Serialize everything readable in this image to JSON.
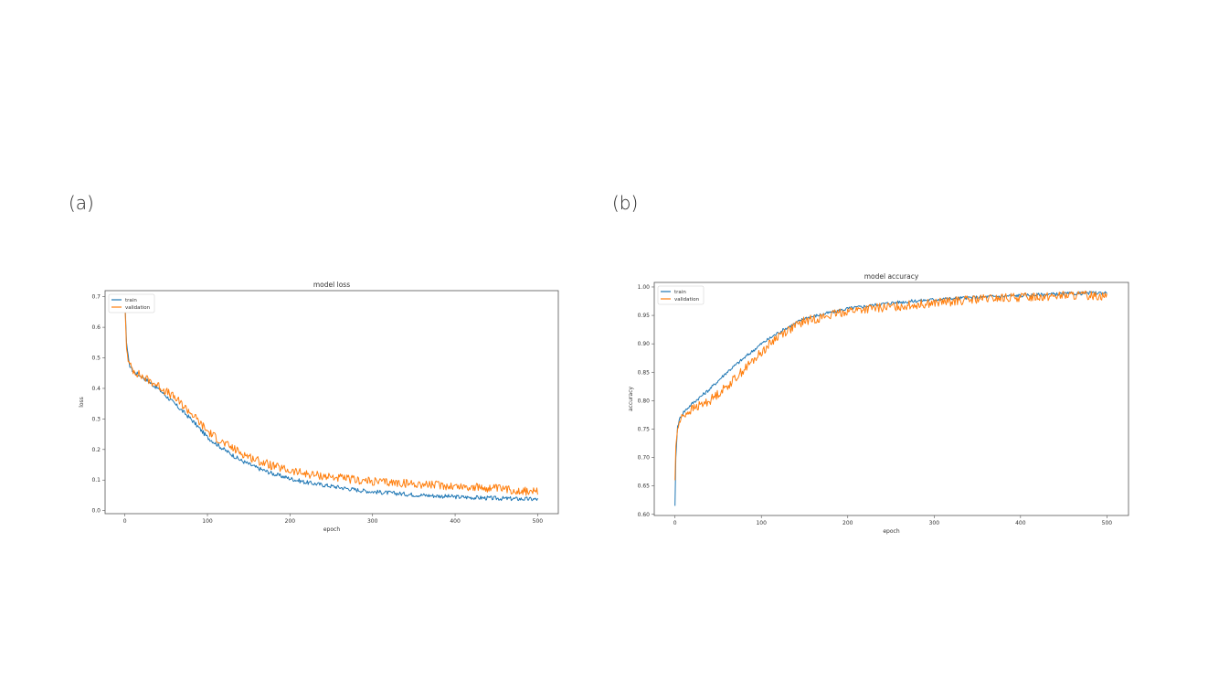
{
  "panels": [
    {
      "label": "(a)"
    },
    {
      "label": "(b)"
    }
  ],
  "chart_data": [
    {
      "type": "line",
      "title": "model loss",
      "xlabel": "epoch",
      "ylabel": "loss",
      "xlim": [
        -24,
        525
      ],
      "ylim": [
        -0.01,
        0.72
      ],
      "xticks": [
        0,
        100,
        200,
        300,
        400,
        500
      ],
      "yticks": [
        0.0,
        0.1,
        0.2,
        0.3,
        0.4,
        0.5,
        0.6,
        0.7
      ],
      "ytick_labels": [
        "0.0",
        "0.1",
        "0.2",
        "0.3",
        "0.4",
        "0.5",
        "0.6",
        "0.7"
      ],
      "legend_position": "top-left",
      "grid": false,
      "series": [
        {
          "name": "train",
          "color": "#1f77b4",
          "x": [
            0,
            2,
            5,
            10,
            20,
            40,
            60,
            80,
            100,
            120,
            140,
            160,
            180,
            200,
            220,
            250,
            280,
            300,
            350,
            400,
            450,
            500
          ],
          "y": [
            0.69,
            0.55,
            0.48,
            0.455,
            0.44,
            0.4,
            0.35,
            0.3,
            0.24,
            0.2,
            0.165,
            0.14,
            0.12,
            0.105,
            0.092,
            0.08,
            0.068,
            0.062,
            0.052,
            0.045,
            0.04,
            0.037
          ],
          "noise": 0.007
        },
        {
          "name": "validation",
          "color": "#ff7f0e",
          "x": [
            0,
            2,
            5,
            10,
            20,
            40,
            60,
            80,
            100,
            120,
            140,
            160,
            180,
            200,
            220,
            250,
            280,
            300,
            350,
            400,
            450,
            500
          ],
          "y": [
            0.68,
            0.53,
            0.48,
            0.46,
            0.44,
            0.41,
            0.37,
            0.32,
            0.26,
            0.22,
            0.19,
            0.165,
            0.145,
            0.13,
            0.12,
            0.11,
            0.1,
            0.095,
            0.088,
            0.08,
            0.072,
            0.06
          ],
          "noise": 0.014
        }
      ]
    },
    {
      "type": "line",
      "title": "model accuracy",
      "xlabel": "epoch",
      "ylabel": "accuracy",
      "xlim": [
        -24,
        525
      ],
      "ylim": [
        0.598,
        1.008
      ],
      "xticks": [
        0,
        100,
        200,
        300,
        400,
        500
      ],
      "yticks": [
        0.6,
        0.65,
        0.7,
        0.75,
        0.8,
        0.85,
        0.9,
        0.95,
        1.0
      ],
      "ytick_labels": [
        "0.60",
        "0.65",
        "0.70",
        "0.75",
        "0.80",
        "0.85",
        "0.90",
        "0.95",
        "1.00"
      ],
      "legend_position": "top-left",
      "grid": false,
      "series": [
        {
          "name": "train",
          "color": "#1f77b4",
          "x": [
            0,
            1,
            3,
            6,
            10,
            20,
            40,
            60,
            80,
            100,
            120,
            150,
            180,
            200,
            250,
            300,
            350,
            400,
            450,
            500
          ],
          "y": [
            0.615,
            0.7,
            0.755,
            0.77,
            0.78,
            0.795,
            0.82,
            0.85,
            0.875,
            0.9,
            0.92,
            0.945,
            0.955,
            0.962,
            0.972,
            0.978,
            0.982,
            0.985,
            0.988,
            0.99
          ],
          "noise": 0.003
        },
        {
          "name": "validation",
          "color": "#ff7f0e",
          "x": [
            0,
            1,
            3,
            6,
            10,
            20,
            40,
            60,
            80,
            100,
            120,
            150,
            180,
            200,
            250,
            300,
            350,
            400,
            450,
            500
          ],
          "y": [
            0.66,
            0.72,
            0.75,
            0.765,
            0.775,
            0.785,
            0.8,
            0.825,
            0.855,
            0.885,
            0.915,
            0.94,
            0.95,
            0.958,
            0.965,
            0.972,
            0.978,
            0.982,
            0.985,
            0.985
          ],
          "noise": 0.008
        }
      ]
    }
  ]
}
